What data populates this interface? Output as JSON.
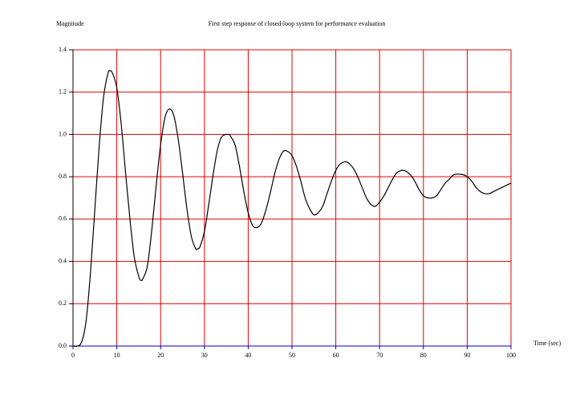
{
  "chart_data": {
    "type": "line",
    "title": "First step response of closed-loop system for performance evaluation",
    "y_label": "Magnitude",
    "x_label": "Time (sec)",
    "x": [
      0,
      1,
      2,
      3,
      4,
      5,
      6,
      7,
      8,
      8.5,
      9,
      10,
      11,
      12,
      13,
      14,
      15,
      15.5,
      16,
      17,
      18,
      19,
      20,
      21,
      22,
      23,
      24,
      25,
      26,
      27,
      28,
      28.5,
      29,
      30,
      31,
      32,
      33,
      34,
      35.5,
      36,
      37,
      38,
      39,
      40,
      41,
      42,
      43,
      44,
      45,
      46,
      47,
      48,
      49,
      50,
      51,
      52,
      53,
      54,
      55,
      56,
      57,
      58,
      59,
      60,
      61,
      62.5,
      64,
      65,
      66,
      67,
      68,
      69,
      70,
      71,
      72,
      73,
      74,
      75.5,
      77,
      78,
      79,
      80,
      81,
      82,
      83,
      84,
      85,
      86,
      87,
      89,
      90,
      91,
      92,
      93,
      94,
      95,
      96,
      97,
      98,
      99,
      100
    ],
    "series": [
      {
        "color": "#000000",
        "values": [
          0,
          0,
          0.02,
          0.12,
          0.35,
          0.65,
          0.95,
          1.18,
          1.29,
          1.3,
          1.29,
          1.22,
          1.05,
          0.82,
          0.6,
          0.42,
          0.33,
          0.31,
          0.32,
          0.38,
          0.55,
          0.76,
          0.95,
          1.08,
          1.12,
          1.09,
          0.98,
          0.82,
          0.65,
          0.52,
          0.46,
          0.46,
          0.47,
          0.54,
          0.67,
          0.81,
          0.93,
          0.99,
          1.0,
          0.99,
          0.95,
          0.85,
          0.73,
          0.63,
          0.57,
          0.56,
          0.58,
          0.64,
          0.72,
          0.81,
          0.88,
          0.92,
          0.92,
          0.9,
          0.85,
          0.78,
          0.7,
          0.65,
          0.62,
          0.63,
          0.66,
          0.72,
          0.78,
          0.83,
          0.86,
          0.87,
          0.84,
          0.8,
          0.75,
          0.7,
          0.67,
          0.66,
          0.68,
          0.71,
          0.75,
          0.79,
          0.82,
          0.83,
          0.81,
          0.78,
          0.74,
          0.71,
          0.7,
          0.7,
          0.71,
          0.74,
          0.77,
          0.79,
          0.81,
          0.81,
          0.8,
          0.78,
          0.75,
          0.73,
          0.72,
          0.72,
          0.73,
          0.74,
          0.75,
          0.76,
          0.77
        ]
      }
    ],
    "xlim": [
      0,
      100
    ],
    "ylim": [
      0,
      1.4
    ],
    "xticks": [
      0,
      10,
      20,
      30,
      40,
      50,
      60,
      70,
      80,
      90,
      100
    ],
    "yticks": [
      {
        "value": 0,
        "label": "0.0"
      },
      0.2,
      0.4,
      0.6,
      0.8,
      {
        "value": 1,
        "label": "1.0"
      },
      1.2,
      1.4
    ],
    "grid": true,
    "grid_color": "#e00000",
    "x_axis_color": "#0000cc"
  }
}
